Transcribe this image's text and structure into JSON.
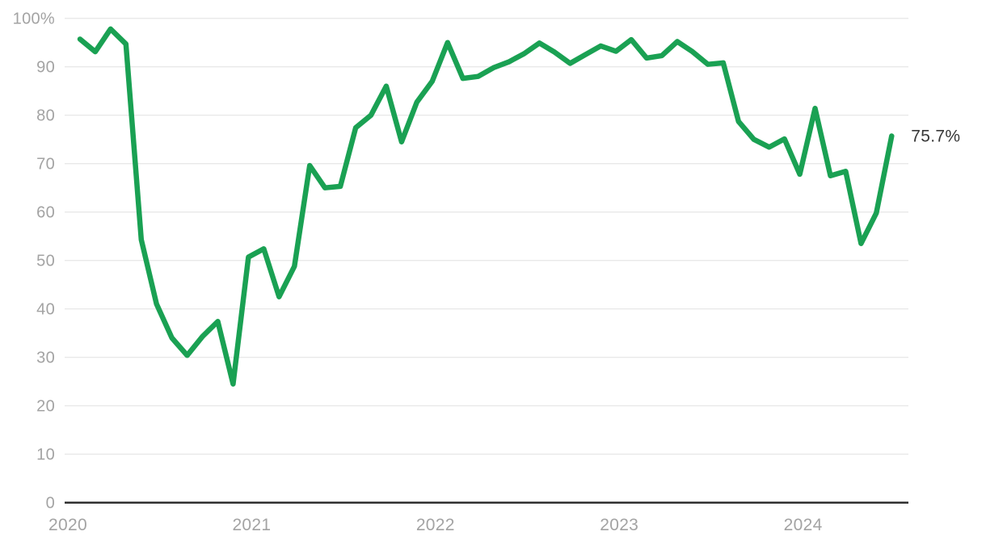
{
  "chart_data": {
    "type": "line",
    "title": "",
    "unit": "%",
    "grid": "horizontal",
    "legend": "none",
    "line_color": "#1aa153",
    "grid_color": "#e9e9e9",
    "baseline_color": "#2f2f2f",
    "tick_label_color": "#a3a3a3",
    "end_label": {
      "text": "75.7%",
      "color": "#383838"
    },
    "y_axis": {
      "ylim": [
        0,
        100
      ],
      "tick_labels": [
        "100%",
        "90",
        "80",
        "70",
        "60",
        "50",
        "40",
        "30",
        "20",
        "10",
        "0"
      ],
      "tick_values": [
        100,
        90,
        80,
        70,
        60,
        50,
        40,
        30,
        20,
        10,
        0
      ]
    },
    "x_axis": {
      "tick_labels": [
        "2020",
        "2021",
        "2022",
        "2023",
        "2024"
      ],
      "tick_months": [
        "2020-01",
        "2021-01",
        "2022-01",
        "2023-01",
        "2024-01"
      ],
      "range_months": [
        "2020-01",
        "2024-08"
      ]
    },
    "series": [
      {
        "name": "value",
        "points": [
          [
            "2020-02",
            95.7
          ],
          [
            "2020-03",
            93.1
          ],
          [
            "2020-04",
            97.8
          ],
          [
            "2020-05",
            94.7
          ],
          [
            "2020-06",
            54.3
          ],
          [
            "2020-07",
            41.0
          ],
          [
            "2020-08",
            34.0
          ],
          [
            "2020-09",
            30.4
          ],
          [
            "2020-10",
            34.3
          ],
          [
            "2020-11",
            37.4
          ],
          [
            "2020-12",
            24.5
          ],
          [
            "2021-01",
            50.7
          ],
          [
            "2021-02",
            52.4
          ],
          [
            "2021-03",
            42.5
          ],
          [
            "2021-04",
            48.8
          ],
          [
            "2021-05",
            69.6
          ],
          [
            "2021-06",
            65.0
          ],
          [
            "2021-07",
            65.3
          ],
          [
            "2021-08",
            77.4
          ],
          [
            "2021-09",
            80.0
          ],
          [
            "2021-10",
            86.0
          ],
          [
            "2021-11",
            74.5
          ],
          [
            "2021-12",
            82.7
          ],
          [
            "2022-01",
            87.0
          ],
          [
            "2022-02",
            95.0
          ],
          [
            "2022-03",
            87.6
          ],
          [
            "2022-04",
            88.0
          ],
          [
            "2022-05",
            89.8
          ],
          [
            "2022-06",
            91.0
          ],
          [
            "2022-07",
            92.7
          ],
          [
            "2022-08",
            94.9
          ],
          [
            "2022-09",
            93.0
          ],
          [
            "2022-10",
            90.7
          ],
          [
            "2022-11",
            92.5
          ],
          [
            "2022-12",
            94.3
          ],
          [
            "2023-01",
            93.2
          ],
          [
            "2023-02",
            95.6
          ],
          [
            "2023-03",
            91.8
          ],
          [
            "2023-04",
            92.3
          ],
          [
            "2023-05",
            95.2
          ],
          [
            "2023-06",
            93.1
          ],
          [
            "2023-07",
            90.5
          ],
          [
            "2023-08",
            90.8
          ],
          [
            "2023-09",
            78.7
          ],
          [
            "2023-10",
            75.0
          ],
          [
            "2023-11",
            73.4
          ],
          [
            "2023-12",
            75.1
          ],
          [
            "2024-01",
            67.8
          ],
          [
            "2024-02",
            81.4
          ],
          [
            "2024-03",
            67.5
          ],
          [
            "2024-04",
            68.4
          ],
          [
            "2024-05",
            53.5
          ],
          [
            "2024-06",
            59.8
          ],
          [
            "2024-07",
            75.7
          ]
        ]
      }
    ]
  }
}
